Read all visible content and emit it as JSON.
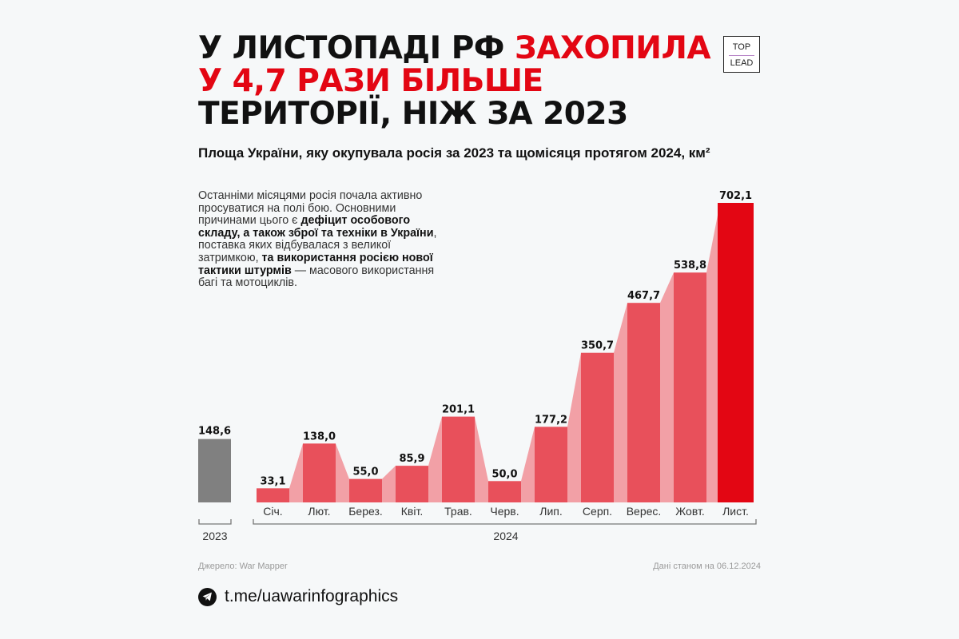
{
  "header": {
    "title_line1_black": "У ЛИСТОПАДІ РФ ",
    "title_line1_red": "ЗАХОПИЛА",
    "title_line2_red": "У 4,7 РАЗИ БІЛЬШЕ",
    "title_line3_black": "ТЕРИТОРІЇ, НІЖ ЗА 2023",
    "logo_top": "TOP",
    "logo_bottom": "LEAD",
    "subtitle": "Площа України, яку окупувала росія за 2023 та щомісяця протягом 2024, км²"
  },
  "note": {
    "p1": "Останніми місяцями росія почала активно просуватися на полі бою. Основними причинами цього є ",
    "b1": "дефіцит особового складу, а також зброї та техніки в України",
    "p2": ", поставка яких відбувалася з великої затримкою, ",
    "b2": "та використання росією нової тактики штурмів",
    "p3": " — масового використання багі та мотоциклів."
  },
  "footer": {
    "source": "Джерело: War Mapper",
    "date": "Дані станом на 06.12.2024",
    "telegram_link": "t.me/uawarinfographics"
  },
  "colors": {
    "accent_red": "#e30613",
    "bar_red": "#e8505b",
    "connector_pink": "#f2a0a6",
    "bar_gray": "#808080"
  },
  "chart_data": {
    "type": "bar",
    "title": "Площа України, яку окупувала росія за 2023 та щомісяця протягом 2024, км²",
    "ylabel": "км²",
    "xlabel": "",
    "grid": false,
    "groups": [
      {
        "name": "2023",
        "categories": [
          ""
        ],
        "values": [
          148.6
        ],
        "labels": [
          "148,6"
        ]
      },
      {
        "name": "2024",
        "categories": [
          "Січ.",
          "Лют.",
          "Берез.",
          "Квіт.",
          "Трав.",
          "Черв.",
          "Лип.",
          "Серп.",
          "Верес.",
          "Жовт.",
          "Лист."
        ],
        "values": [
          33.1,
          138.0,
          55.0,
          85.9,
          201.1,
          50.0,
          177.2,
          350.7,
          467.7,
          538.8,
          702.1
        ],
        "labels": [
          "33,1",
          "138,0",
          "55,0",
          "85,9",
          "201,1",
          "50,0",
          "177,2",
          "350,7",
          "467,7",
          "538,8",
          "702,1"
        ]
      }
    ],
    "ylim": [
      0,
      702.1
    ]
  }
}
